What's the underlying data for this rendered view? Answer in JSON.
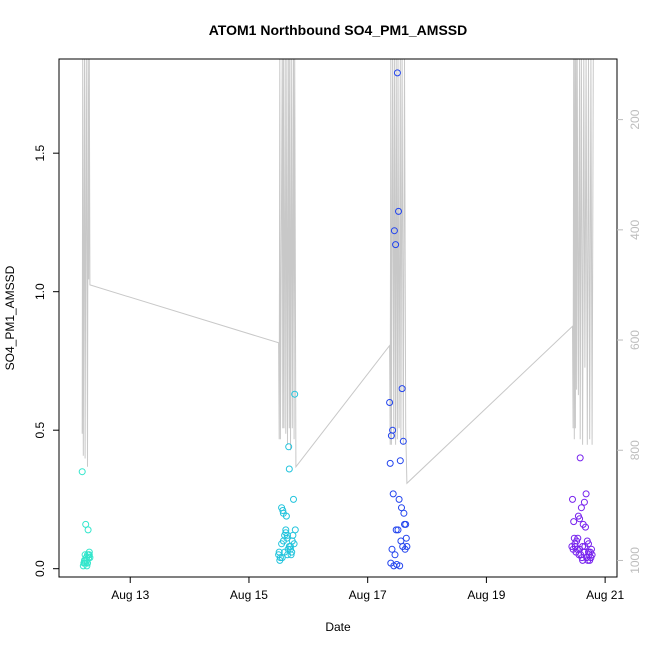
{
  "chart_data": {
    "type": "scatter",
    "title": "ATOM1 Northbound SO4_PM1_AMSSD",
    "xlabel": "Date",
    "ylabel": "SO4_PM1_AMSSD",
    "x_ticks": [
      "Aug 13",
      "Aug 15",
      "Aug 17",
      "Aug 19",
      "Aug 21"
    ],
    "x_tick_days": [
      13,
      15,
      17,
      19,
      21
    ],
    "xlim_days": [
      11.8,
      21.2
    ],
    "y_ticks": [
      0.0,
      0.5,
      1.0,
      1.5
    ],
    "y_tick_labels": [
      "0.0",
      "0.5",
      "1.0",
      "1.5"
    ],
    "ylim": [
      -0.03,
      1.84
    ],
    "y2_ticks": [
      200,
      400,
      600,
      800,
      1000
    ],
    "y2_tick_labels": [
      "200",
      "400",
      "600",
      "800",
      "1000"
    ],
    "y2lim": [
      1030,
      90
    ],
    "y2_reversed": true,
    "grid": false,
    "legend": "none",
    "colors": {
      "group1": "#33e6cc",
      "group2": "#22c4dd",
      "group3": "#2244ee",
      "group4": "#7722ee",
      "pressure_line": "#c8c8c8"
    },
    "series": [
      {
        "color_key": "group1",
        "x": [
          12.19,
          12.22,
          12.23,
          12.24,
          12.25,
          12.26,
          12.27,
          12.28,
          12.29,
          12.3,
          12.31,
          12.32,
          12.21,
          12.25,
          12.28,
          12.24,
          12.3,
          12.27,
          12.31,
          12.23
        ],
        "y": [
          0.35,
          0.02,
          0.03,
          0.05,
          0.16,
          0.04,
          0.03,
          0.02,
          0.14,
          0.05,
          0.06,
          0.04,
          0.01,
          0.02,
          0.05,
          0.03,
          0.04,
          0.01,
          0.05,
          0.02
        ]
      },
      {
        "color_key": "group2",
        "x": [
          15.5,
          15.52,
          15.55,
          15.57,
          15.58,
          15.6,
          15.62,
          15.63,
          15.65,
          15.67,
          15.68,
          15.7,
          15.72,
          15.73,
          15.75,
          15.77,
          15.78,
          15.55,
          15.6,
          15.65,
          15.7,
          15.53,
          15.58,
          15.62,
          15.68,
          15.74,
          15.51,
          15.66,
          15.76,
          15.56,
          15.64,
          15.71
        ],
        "y": [
          0.05,
          0.03,
          0.22,
          0.21,
          0.2,
          0.12,
          0.14,
          0.19,
          0.12,
          0.44,
          0.36,
          0.07,
          0.06,
          0.1,
          0.25,
          0.63,
          0.14,
          0.09,
          0.06,
          0.05,
          0.08,
          0.04,
          0.1,
          0.13,
          0.08,
          0.12,
          0.06,
          0.07,
          0.09,
          0.04,
          0.11,
          0.05
        ]
      },
      {
        "color_key": "group3",
        "x": [
          17.37,
          17.4,
          17.42,
          17.45,
          17.47,
          17.5,
          17.52,
          17.55,
          17.58,
          17.6,
          17.62,
          17.65,
          17.38,
          17.43,
          17.48,
          17.53,
          17.57,
          17.61,
          17.64,
          17.41,
          17.46,
          17.51,
          17.56,
          17.59,
          17.63,
          17.39,
          17.44,
          17.49,
          17.54,
          17.66
        ],
        "y": [
          0.6,
          0.48,
          0.5,
          1.22,
          1.17,
          1.79,
          1.29,
          0.39,
          0.65,
          0.46,
          0.16,
          0.11,
          0.38,
          0.27,
          0.14,
          0.25,
          0.22,
          0.2,
          0.16,
          0.07,
          0.05,
          0.14,
          0.1,
          0.08,
          0.07,
          0.02,
          0.01,
          0.015,
          0.01,
          0.08
        ]
      },
      {
        "color_key": "group4",
        "x": [
          20.45,
          20.47,
          20.48,
          20.5,
          20.52,
          20.53,
          20.55,
          20.57,
          20.58,
          20.6,
          20.62,
          20.63,
          20.65,
          20.67,
          20.68,
          20.7,
          20.72,
          20.73,
          20.75,
          20.77,
          20.46,
          20.51,
          20.56,
          20.61,
          20.66,
          20.71,
          20.76,
          20.49,
          20.54,
          20.59,
          20.64,
          20.69,
          20.74,
          20.78,
          20.44,
          20.57,
          20.62,
          20.72
        ],
        "y": [
          0.25,
          0.17,
          0.11,
          0.08,
          0.1,
          0.07,
          0.19,
          0.18,
          0.4,
          0.22,
          0.08,
          0.16,
          0.24,
          0.15,
          0.27,
          0.1,
          0.09,
          0.05,
          0.06,
          0.07,
          0.07,
          0.06,
          0.05,
          0.04,
          0.08,
          0.03,
          0.04,
          0.09,
          0.11,
          0.05,
          0.06,
          0.04,
          0.03,
          0.05,
          0.08,
          0.07,
          0.03,
          0.06
        ]
      }
    ],
    "pressure_line": {
      "axis": "y2",
      "x": [
        12.19,
        12.2,
        12.21,
        12.23,
        12.24,
        12.26,
        12.28,
        12.29,
        12.3,
        12.31,
        12.32,
        15.5,
        15.51,
        15.52,
        15.53,
        15.56,
        15.57,
        15.58,
        15.59,
        15.61,
        15.62,
        15.64,
        15.65,
        15.67,
        15.68,
        15.69,
        15.7,
        15.72,
        15.73,
        15.75,
        15.76,
        15.77,
        15.79,
        17.37,
        17.38,
        17.39,
        17.4,
        17.42,
        17.44,
        17.45,
        17.47,
        17.48,
        17.5,
        17.51,
        17.53,
        17.55,
        17.56,
        17.58,
        17.6,
        17.62,
        17.64,
        17.66,
        20.45,
        20.46,
        20.47,
        20.48,
        20.49,
        20.5,
        20.51,
        20.52,
        20.53,
        20.55,
        20.57,
        20.58,
        20.6,
        20.62,
        20.64,
        20.66,
        20.68,
        20.7,
        20.72,
        20.74,
        20.76,
        20.78,
        20.8
      ],
      "y": [
        770,
        90,
        810,
        90,
        815,
        90,
        830,
        90,
        490,
        90,
        500,
        605,
        780,
        90,
        780,
        90,
        760,
        90,
        760,
        90,
        770,
        90,
        790,
        90,
        760,
        90,
        800,
        90,
        760,
        90,
        780,
        90,
        830,
        610,
        790,
        90,
        790,
        90,
        780,
        90,
        790,
        90,
        780,
        90,
        760,
        90,
        780,
        90,
        790,
        90,
        760,
        860,
        575,
        760,
        90,
        780,
        90,
        760,
        90,
        690,
        90,
        700,
        90,
        780,
        90,
        790,
        90,
        650,
        90,
        790,
        90,
        780,
        90,
        790,
        90
      ]
    }
  }
}
